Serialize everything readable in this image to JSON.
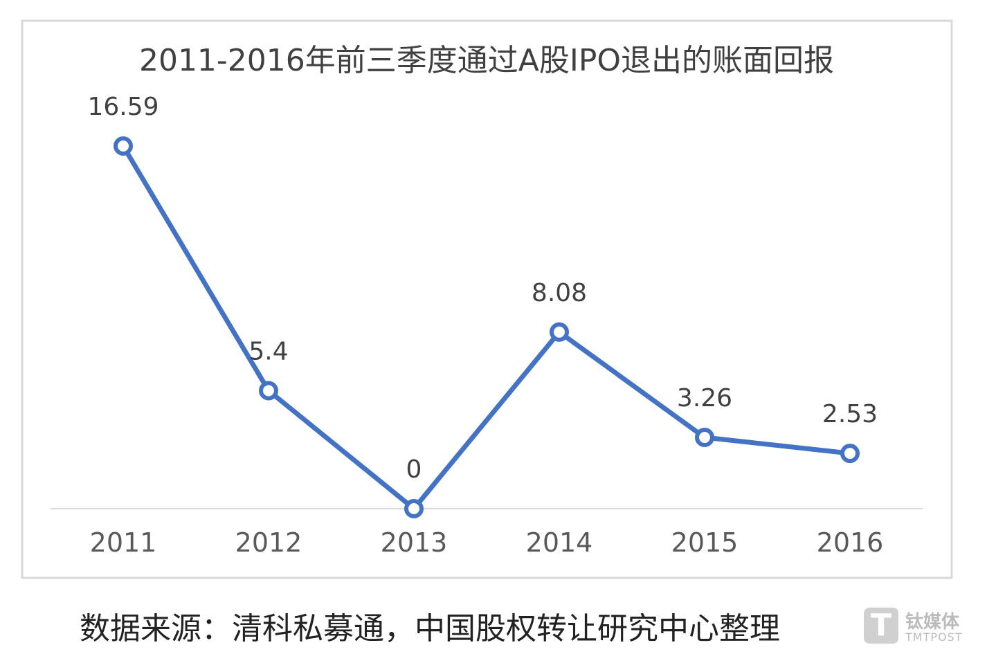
{
  "chart_data": {
    "type": "line",
    "title": "2011-2016年前三季度通过A股IPO退出的账面回报",
    "categories": [
      "2011",
      "2012",
      "2013",
      "2014",
      "2015",
      "2016"
    ],
    "values": [
      16.59,
      5.4,
      0,
      8.08,
      3.26,
      2.53
    ],
    "data_labels": [
      "16.59",
      "5.4",
      "0",
      "8.08",
      "3.26",
      "2.53"
    ],
    "xlabel": "",
    "ylabel": "",
    "ylim": [
      0,
      16.59
    ],
    "grid": false,
    "legend": "none",
    "line_color": "#4472c4",
    "marker": "hollow-circle"
  },
  "source_text": "数据来源：清科私募通，中国股权转让研究中心整理",
  "watermark": {
    "cn": "钛媒体",
    "en": "TMTPOST",
    "logo": "T"
  }
}
